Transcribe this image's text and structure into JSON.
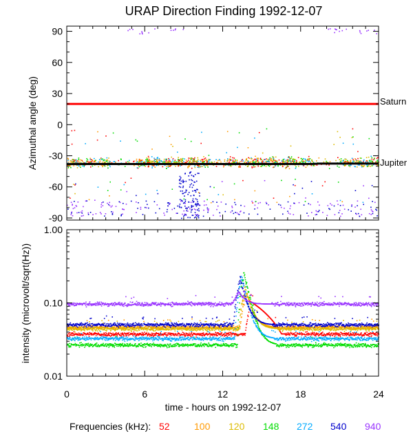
{
  "chart_data": [
    {
      "type": "scatter",
      "title": "URAP Direction Finding  1992-12-07",
      "ylabel": "Azimuthal angle (deg)",
      "xlim": [
        0,
        24
      ],
      "ylim": [
        -92,
        95
      ],
      "yticks": [
        90,
        60,
        30,
        0,
        -30,
        -60,
        -90
      ],
      "reference_lines": [
        {
          "label": "Saturn",
          "value": 20,
          "color": "#ff0000"
        },
        {
          "label": "Jupiter",
          "start": -38,
          "end": -37.5,
          "color": "#000000"
        }
      ]
    },
    {
      "type": "scatter",
      "ylabel": "intensity (microvolt/sqrt(Hz))",
      "yscale": "log",
      "ylim": [
        0.01,
        1.0
      ],
      "yticks": [
        1.0,
        0.1,
        0.01
      ],
      "ytick_labels": [
        "1.00",
        "0.10",
        "0.01"
      ],
      "xlabel": "time - hours on 1992-12-07",
      "xticks": [
        0,
        6,
        12,
        18,
        24
      ],
      "series": [
        {
          "name": "52",
          "color": "#ff0000",
          "baseline": 0.038,
          "peak": 0.12,
          "peak_hour": 14.2
        },
        {
          "name": "100",
          "color": "#ff9900",
          "baseline": 0.047,
          "peak": 0.15,
          "peak_hour": 13.8
        },
        {
          "name": "120",
          "color": "#ddbb00",
          "baseline": 0.045,
          "peak": 0.18,
          "peak_hour": 13.7
        },
        {
          "name": "148",
          "color": "#00dd00",
          "baseline": 0.027,
          "peak": 0.3,
          "peak_hour": 13.6
        },
        {
          "name": "272",
          "color": "#00aaff",
          "baseline": 0.033,
          "peak": 0.26,
          "peak_hour": 13.4
        },
        {
          "name": "540",
          "color": "#0000cc",
          "baseline": 0.051,
          "peak": 0.24,
          "peak_hour": 13.3
        },
        {
          "name": "940",
          "color": "#9933ff",
          "baseline": 0.098,
          "peak": 0.15,
          "peak_hour": 13.2
        }
      ]
    }
  ],
  "legend": {
    "label": "Frequencies (kHz):",
    "items": [
      "52",
      "100",
      "120",
      "148",
      "272",
      "540",
      "940"
    ]
  }
}
